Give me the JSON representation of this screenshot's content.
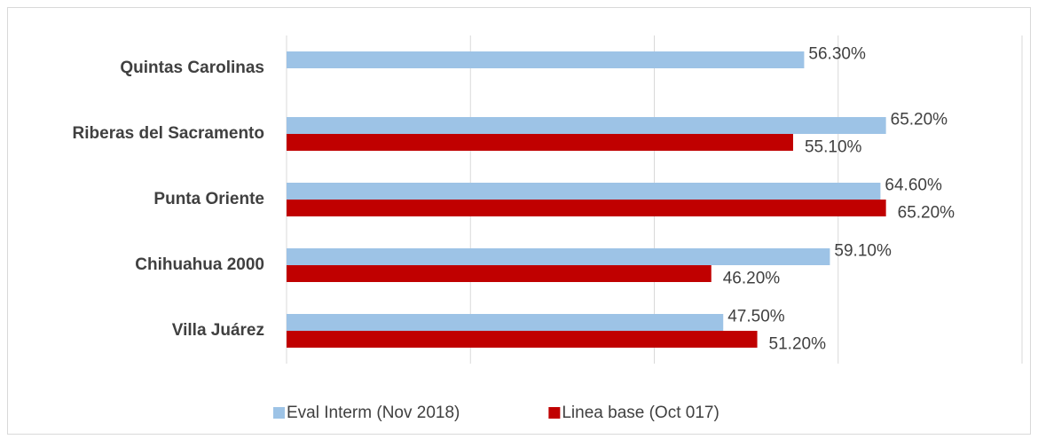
{
  "chart_data": {
    "type": "hbar",
    "categories": [
      "Quintas Carolinas",
      "Riberas del Sacramento",
      "Punta Oriente",
      "Chihuahua 2000",
      "Villa Juárez"
    ],
    "series": [
      {
        "name": "Eval Interm (Nov 2018)",
        "color": "#9dc3e6",
        "values": [
          56.3,
          65.2,
          64.6,
          59.1,
          47.5
        ],
        "value_labels": [
          "56.30%",
          "65.20%",
          "64.60%",
          "59.10%",
          "47.50%"
        ]
      },
      {
        "name": "Linea base (Oct 017)",
        "color": "#c00000",
        "values": [
          null,
          55.1,
          65.2,
          46.2,
          51.2
        ],
        "value_labels": [
          null,
          "55.10%",
          "65.20%",
          "46.20%",
          "51.20%"
        ]
      }
    ],
    "xlim": [
      0,
      80
    ],
    "xticks": [
      0,
      20,
      40,
      60,
      80
    ],
    "grid": true,
    "legend": "bottom"
  }
}
